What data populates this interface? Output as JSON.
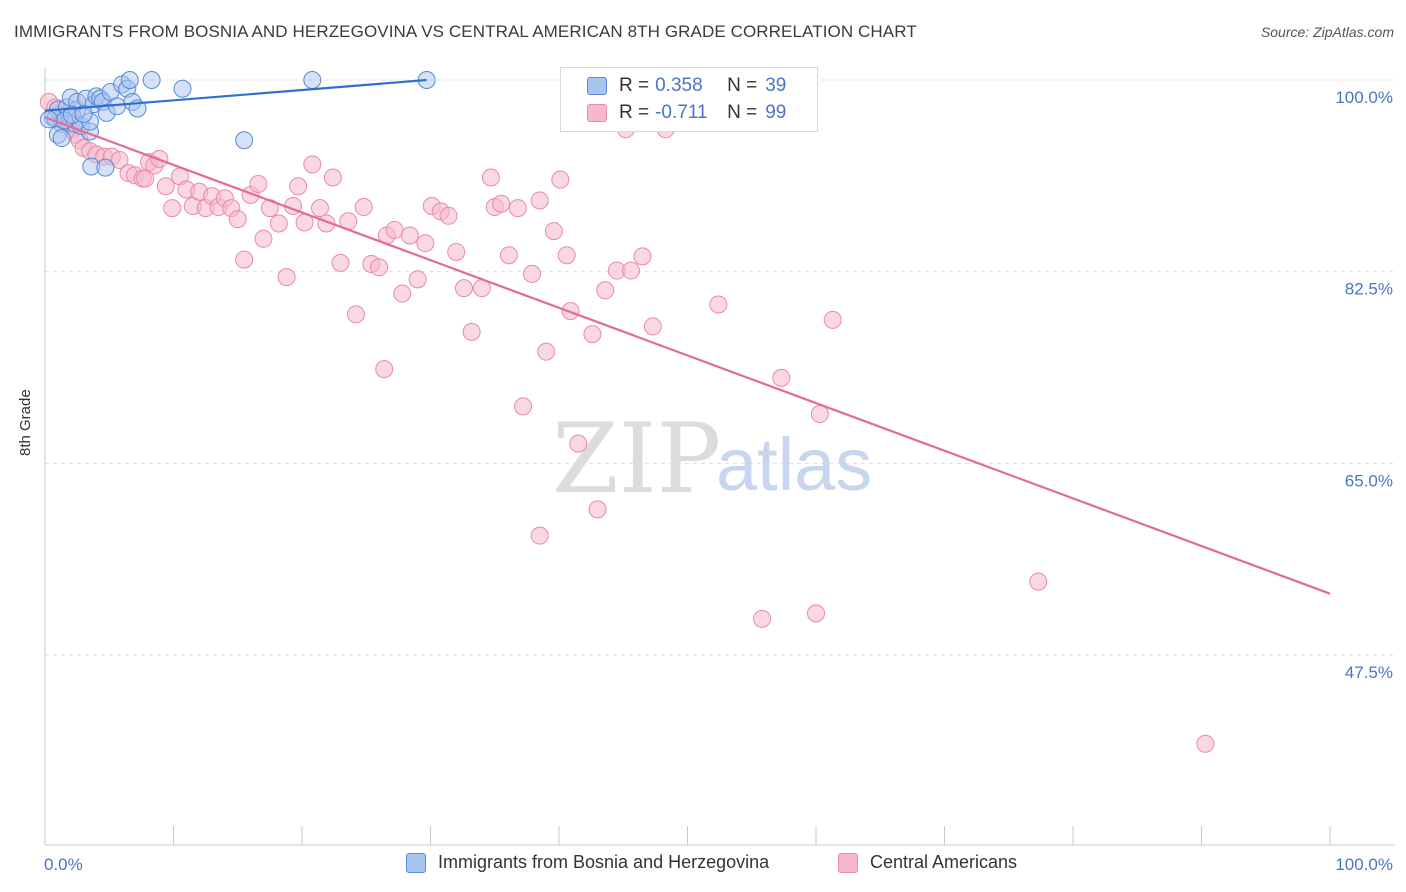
{
  "header": {
    "title": "IMMIGRANTS FROM BOSNIA AND HERZEGOVINA VS CENTRAL AMERICAN 8TH GRADE CORRELATION CHART",
    "source": "Source: ZipAtlas.com"
  },
  "watermark": {
    "zip": "ZIP",
    "atlas": "atlas"
  },
  "legend_top": {
    "rows": [
      {
        "r_key": "R =",
        "r_value": "0.358",
        "n_key": "N =",
        "n_value": "39"
      },
      {
        "r_key": "R =",
        "r_value": "-0.711",
        "n_key": "N =",
        "n_value": "99"
      }
    ]
  },
  "legend_bottom": {
    "items": [
      {
        "label": "Immigrants from Bosnia and Herzegovina"
      },
      {
        "label": "Central Americans"
      }
    ]
  },
  "colors": {
    "blue_fill": "#a9c4ef",
    "blue_stroke": "#5a8ad6",
    "blue_line": "#2f6fd0",
    "pink_fill": "#f6b8cc",
    "pink_stroke": "#e98aa9",
    "pink_line": "#e4699a",
    "tick_text": "#4a74c9",
    "grid": "#dedede"
  },
  "chart_data": {
    "type": "scatter",
    "title": "IMMIGRANTS FROM BOSNIA AND HERZEGOVINA VS CENTRAL AMERICAN 8TH GRADE CORRELATION CHART",
    "xlabel": "",
    "ylabel": "8th Grade",
    "xlim": [
      0,
      100
    ],
    "ylim": [
      33.0,
      101.0
    ],
    "x_tick_labels": [
      "0.0%",
      "100.0%"
    ],
    "y_ticks": [
      100.0,
      82.5,
      65.0,
      47.5
    ],
    "y_tick_labels": [
      "100.0%",
      "82.5%",
      "65.0%",
      "47.5%"
    ],
    "grid": true,
    "legend_position": "top-center",
    "series": [
      {
        "name": "Immigrants from Bosnia and Herzegovina",
        "color": "blue",
        "r": 0.358,
        "n": 39,
        "trend": [
          [
            0.0,
            97.2
          ],
          [
            29.7,
            100.0
          ]
        ],
        "points": [
          [
            0.6,
            96.6
          ],
          [
            1.0,
            97.3
          ],
          [
            1.3,
            96.0
          ],
          [
            1.0,
            95.0
          ],
          [
            0.8,
            96.5
          ],
          [
            1.9,
            96.6
          ],
          [
            1.7,
            97.5
          ],
          [
            2.0,
            98.4
          ],
          [
            2.3,
            96.0
          ],
          [
            2.5,
            97.3
          ],
          [
            2.8,
            95.8
          ],
          [
            2.5,
            98.0
          ],
          [
            3.2,
            98.3
          ],
          [
            3.5,
            95.3
          ],
          [
            3.8,
            97.8
          ],
          [
            4.0,
            98.5
          ],
          [
            4.3,
            98.3
          ],
          [
            3.5,
            96.2
          ],
          [
            4.5,
            98.0
          ],
          [
            4.8,
            97.0
          ],
          [
            5.1,
            98.9
          ],
          [
            5.6,
            97.6
          ],
          [
            6.0,
            99.6
          ],
          [
            6.4,
            99.2
          ],
          [
            6.8,
            98.0
          ],
          [
            7.2,
            97.4
          ],
          [
            6.6,
            100.0
          ],
          [
            8.3,
            100.0
          ],
          [
            10.7,
            99.2
          ],
          [
            20.8,
            100.0
          ],
          [
            29.7,
            100.0
          ],
          [
            1.3,
            94.7
          ],
          [
            3.6,
            92.1
          ],
          [
            4.7,
            92.0
          ],
          [
            15.5,
            94.5
          ],
          [
            1.5,
            96.3
          ],
          [
            2.1,
            96.8
          ],
          [
            0.3,
            96.4
          ],
          [
            3.0,
            96.9
          ]
        ]
      },
      {
        "name": "Central Americans",
        "color": "pink",
        "r": -0.711,
        "n": 99,
        "trend": [
          [
            0.0,
            96.6
          ],
          [
            100.0,
            53.1
          ]
        ],
        "points": [
          [
            0.3,
            98.0
          ],
          [
            0.8,
            97.5
          ],
          [
            1.2,
            96.8
          ],
          [
            1.5,
            96.3
          ],
          [
            1.8,
            96.0
          ],
          [
            2.1,
            95.5
          ],
          [
            2.4,
            95.0
          ],
          [
            2.7,
            94.5
          ],
          [
            3.0,
            93.8
          ],
          [
            3.5,
            93.5
          ],
          [
            4.0,
            93.2
          ],
          [
            4.6,
            93.0
          ],
          [
            5.2,
            93.0
          ],
          [
            5.8,
            92.7
          ],
          [
            6.5,
            91.5
          ],
          [
            7.0,
            91.3
          ],
          [
            7.6,
            91.0
          ],
          [
            8.1,
            92.5
          ],
          [
            8.5,
            92.2
          ],
          [
            8.9,
            92.8
          ],
          [
            9.4,
            90.3
          ],
          [
            9.9,
            88.3
          ],
          [
            10.5,
            91.2
          ],
          [
            11.0,
            90.0
          ],
          [
            11.5,
            88.5
          ],
          [
            12.0,
            89.8
          ],
          [
            12.5,
            88.3
          ],
          [
            13.0,
            89.4
          ],
          [
            13.5,
            88.4
          ],
          [
            14.0,
            89.2
          ],
          [
            14.5,
            88.3
          ],
          [
            15.0,
            87.3
          ],
          [
            15.5,
            83.6
          ],
          [
            16.0,
            89.5
          ],
          [
            16.6,
            90.5
          ],
          [
            17.0,
            85.5
          ],
          [
            17.5,
            88.3
          ],
          [
            18.2,
            86.9
          ],
          [
            18.8,
            82.0
          ],
          [
            19.3,
            88.5
          ],
          [
            19.7,
            90.3
          ],
          [
            20.2,
            87.0
          ],
          [
            20.8,
            92.3
          ],
          [
            21.4,
            88.3
          ],
          [
            21.9,
            86.9
          ],
          [
            22.4,
            91.1
          ],
          [
            23.0,
            83.3
          ],
          [
            23.6,
            87.1
          ],
          [
            24.2,
            78.6
          ],
          [
            24.8,
            88.4
          ],
          [
            25.4,
            83.2
          ],
          [
            26.0,
            82.9
          ],
          [
            26.6,
            85.8
          ],
          [
            27.2,
            86.3
          ],
          [
            27.8,
            80.5
          ],
          [
            28.4,
            85.8
          ],
          [
            29.0,
            81.8
          ],
          [
            29.6,
            85.1
          ],
          [
            30.1,
            88.5
          ],
          [
            30.8,
            88.0
          ],
          [
            31.4,
            87.6
          ],
          [
            32.0,
            84.3
          ],
          [
            32.6,
            81.0
          ],
          [
            33.2,
            77.0
          ],
          [
            34.0,
            81.0
          ],
          [
            34.7,
            91.1
          ],
          [
            35.0,
            88.4
          ],
          [
            35.5,
            88.7
          ],
          [
            36.1,
            84.0
          ],
          [
            36.8,
            88.3
          ],
          [
            37.2,
            70.2
          ],
          [
            37.9,
            82.3
          ],
          [
            38.5,
            89.0
          ],
          [
            39.0,
            75.2
          ],
          [
            39.6,
            86.2
          ],
          [
            40.1,
            90.9
          ],
          [
            40.6,
            84.0
          ],
          [
            40.9,
            78.9
          ],
          [
            41.5,
            66.8
          ],
          [
            42.6,
            76.8
          ],
          [
            43.0,
            60.8
          ],
          [
            43.6,
            80.8
          ],
          [
            44.5,
            82.6
          ],
          [
            45.2,
            95.5
          ],
          [
            45.6,
            82.6
          ],
          [
            46.5,
            83.9
          ],
          [
            47.3,
            77.5
          ],
          [
            48.3,
            95.5
          ],
          [
            52.4,
            79.5
          ],
          [
            57.3,
            72.8
          ],
          [
            60.3,
            69.5
          ],
          [
            61.3,
            78.1
          ],
          [
            38.5,
            58.4
          ],
          [
            55.8,
            50.8
          ],
          [
            60.0,
            51.3
          ],
          [
            77.3,
            54.2
          ],
          [
            90.3,
            39.4
          ],
          [
            26.4,
            73.6
          ],
          [
            7.8,
            91.0
          ]
        ]
      }
    ]
  }
}
